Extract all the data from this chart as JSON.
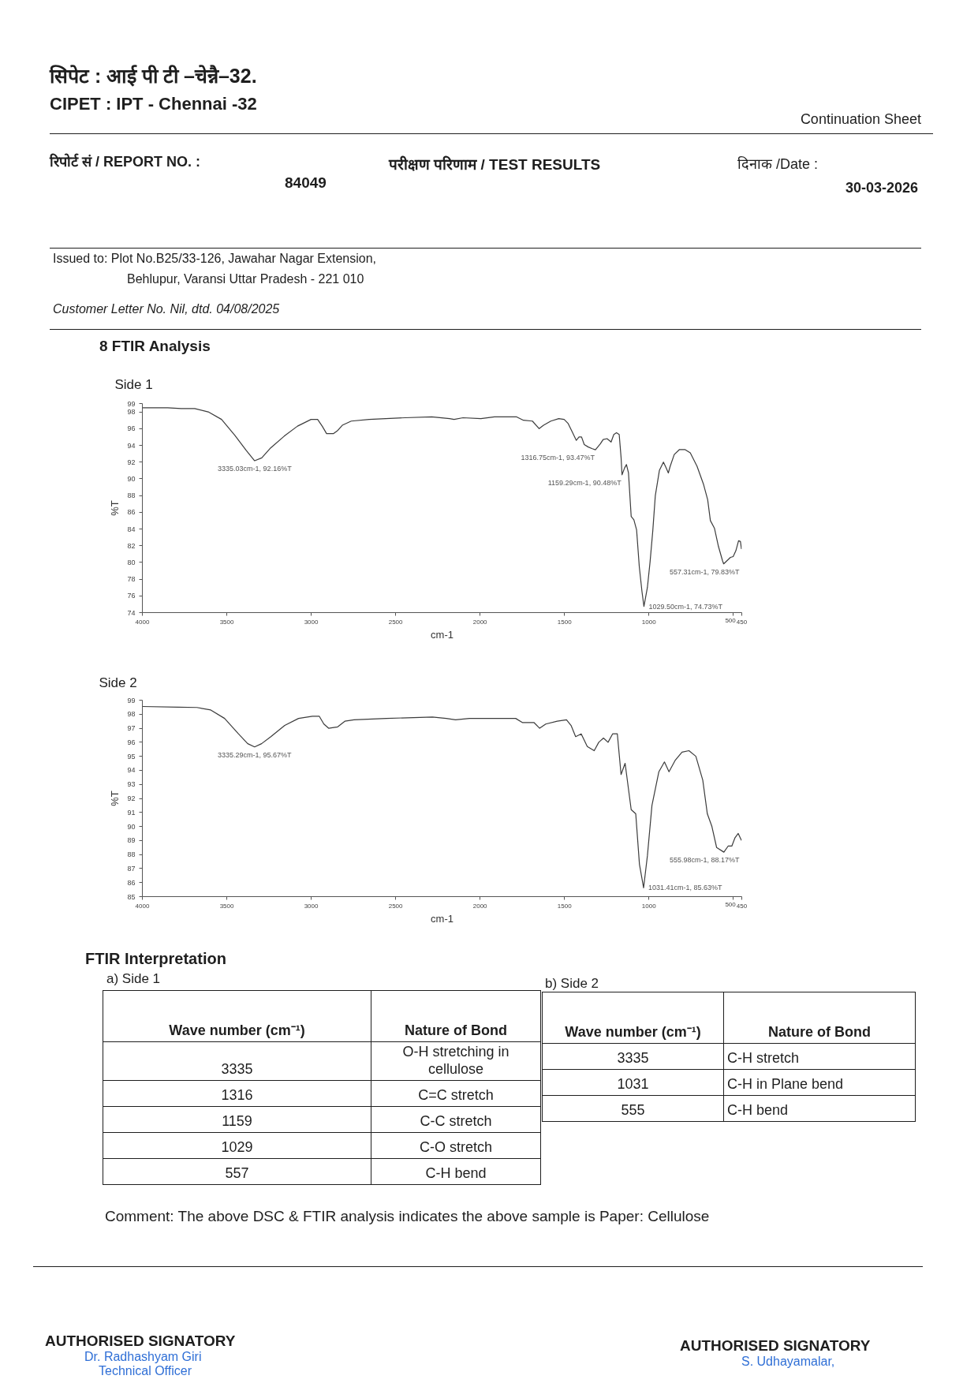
{
  "chart_data": [
    {
      "type": "other",
      "annotations": [
        "सिपेट : आई पी टी –चेन्नै–32.",
        "CIPET : IPT - Chennai -32",
        "Continuation Sheet",
        "रिपोर्ट सं / REPORT NO. :",
        "84049",
        "परीक्षण परिणाम / TEST RESULTS",
        "दिनाक /Date :",
        "30-03-2026",
        "Issued to: Plot No.B25/33-126, Jawahar Nagar Extension,",
        "Behlupur, Varansi Uttar Pradesh - 221 010",
        "Customer Letter No. Nil, dtd. 04/08/2025",
        "8 FTIR Analysis"
      ]
    },
    {
      "type": "line",
      "title": "Side 1",
      "xlabel": "cm-1",
      "ylabel": "%T",
      "color": "#3c3c3c",
      "x": [
        4000,
        3850,
        3770,
        3690,
        3610,
        3531,
        3452,
        3385,
        3335.03,
        3293,
        3240,
        3160,
        3081,
        3001,
        2962,
        2935,
        2909,
        2869,
        2842,
        2816,
        2763,
        2657,
        2445,
        2286,
        2180,
        2154,
        2101,
        1995,
        1915,
        1783,
        1743,
        1690,
        1650,
        1624,
        1581,
        1534,
        1502,
        1478,
        1454,
        1430,
        1414,
        1399,
        1383,
        1359,
        1335,
        1316.75,
        1287,
        1271,
        1248,
        1224,
        1208,
        1192,
        1176,
        1165,
        1159.29,
        1144,
        1133,
        1121,
        1105,
        1089,
        1073,
        1057,
        1041,
        1029.5,
        1009,
        993,
        977,
        962,
        938,
        914,
        898,
        885,
        874,
        850,
        819,
        787,
        755,
        715,
        676,
        652,
        636,
        612,
        588,
        564,
        557.31,
        533,
        517,
        501,
        485,
        469,
        458,
        452
      ],
      "values": [
        98.5,
        98.5,
        98.4,
        98.4,
        98.0,
        97.1,
        95.2,
        93.4,
        92.16,
        92.5,
        93.7,
        95.1,
        96.3,
        97.1,
        97.1,
        96.3,
        95.4,
        95.4,
        95.8,
        96.4,
        96.9,
        97.1,
        97.3,
        97.4,
        97.2,
        97.1,
        97.3,
        97.2,
        97.4,
        97.4,
        97.0,
        96.9,
        96.0,
        96.4,
        96.9,
        97.2,
        97.1,
        96.6,
        95.6,
        94.6,
        95.0,
        95.0,
        94.1,
        93.8,
        93.6,
        93.47,
        94.2,
        94.7,
        94.8,
        94.4,
        95.3,
        95.5,
        95.3,
        92.6,
        90.48,
        91.3,
        91.7,
        90.7,
        85.5,
        85.1,
        83.9,
        79.5,
        76.5,
        74.73,
        77.0,
        80.1,
        83.8,
        88.0,
        91.0,
        92.0,
        91.3,
        90.7,
        91.5,
        92.9,
        93.5,
        93.5,
        93.1,
        91.5,
        89.3,
        87.5,
        85.0,
        84.1,
        81.9,
        80.2,
        79.83,
        80.3,
        80.6,
        80.7,
        81.4,
        82.6,
        82.5,
        81.6
      ],
      "xlim": [
        4000,
        450
      ],
      "xticks": [
        4000,
        3500,
        3000,
        2500,
        2000,
        1500,
        1000,
        500,
        450
      ],
      "ylim": [
        74,
        99
      ],
      "yticks": [
        74,
        76,
        78,
        80,
        82,
        84,
        86,
        88,
        90,
        92,
        94,
        96,
        98,
        99
      ],
      "annotations": [
        {
          "text": "3335.03cm-1, 92.16%T",
          "x": 3335.03,
          "y": 92.16
        },
        {
          "text": "1316.75cm-1, 93.47%T",
          "x": 1316.75,
          "y": 93.47
        },
        {
          "text": "1159.29cm-1, 90.48%T",
          "x": 1159.29,
          "y": 90.48
        },
        {
          "text": "1029.50cm-1, 74.73%T",
          "x": 1029.5,
          "y": 74.73
        },
        {
          "text": "557.31cm-1, 79.83%T",
          "x": 557.31,
          "y": 79.83
        }
      ]
    },
    {
      "type": "line",
      "title": "Side 2",
      "xlabel": "cm-1",
      "ylabel": "%T",
      "color": "#3c3c3c",
      "x": [
        4000,
        3786,
        3677,
        3595,
        3513,
        3431,
        3376,
        3335.29,
        3294,
        3239,
        3157,
        3075,
        2993,
        2952,
        2925,
        2897,
        2843,
        2801,
        2747,
        2555,
        2282,
        2200,
        2145,
        2063,
        1981,
        1789,
        1748,
        1680,
        1647,
        1611,
        1543,
        1488,
        1461,
        1434,
        1401,
        1365,
        1324,
        1297,
        1269,
        1242,
        1215,
        1187,
        1165,
        1141,
        1105,
        1078,
        1056,
        1031.41,
        1009,
        982,
        941,
        908,
        881,
        845,
        804,
        763,
        722,
        681,
        654,
        627,
        599,
        555.98,
        531,
        509,
        490,
        471,
        452
      ],
      "values": [
        98.55,
        98.5,
        98.48,
        98.3,
        97.7,
        96.6,
        95.9,
        95.67,
        95.9,
        96.4,
        97.2,
        97.7,
        97.85,
        97.85,
        97.3,
        97.0,
        97.1,
        97.5,
        97.6,
        97.7,
        97.8,
        97.7,
        97.6,
        97.7,
        97.7,
        97.7,
        97.4,
        97.4,
        97.0,
        97.3,
        97.5,
        97.6,
        97.2,
        96.4,
        96.6,
        95.7,
        95.4,
        96.0,
        96.3,
        96.0,
        96.6,
        96.6,
        93.7,
        94.5,
        91.2,
        90.9,
        87.3,
        85.63,
        87.9,
        91.5,
        93.9,
        94.6,
        93.9,
        94.7,
        95.3,
        95.4,
        95.0,
        93.3,
        90.9,
        90.0,
        88.5,
        88.17,
        88.6,
        88.6,
        89.2,
        89.5,
        89.0
      ],
      "xlim": [
        4000,
        450
      ],
      "xticks": [
        4000,
        3500,
        3000,
        2500,
        2000,
        1500,
        1000,
        500,
        450
      ],
      "ylim": [
        85,
        99
      ],
      "yticks": [
        85,
        86,
        87,
        88,
        89,
        90,
        91,
        92,
        93,
        94,
        95,
        96,
        97,
        98,
        99
      ],
      "annotations": [
        {
          "text": "3335.29cm-1, 95.67%T",
          "x": 3335.29,
          "y": 95.67
        },
        {
          "text": "1031.41cm-1, 85.63%T",
          "x": 1031.41,
          "y": 85.63
        },
        {
          "text": "555.98cm-1, 88.17%T",
          "x": 555.98,
          "y": 88.17
        }
      ]
    },
    {
      "type": "other",
      "title": "FTIR Interpretation",
      "subtitle": "a) Side 1",
      "annotations": [
        "Wave number (cm⁻¹)",
        "Nature of Bond",
        "3335",
        "O-H stretching in cellulose",
        "1316",
        "C=C stretch",
        "1159",
        "C-C stretch",
        "1029",
        "C-O stretch",
        "557",
        "C-H bend"
      ]
    },
    {
      "type": "other",
      "subtitle": "b) Side 2",
      "annotations": [
        "Wave number (cm⁻¹)",
        "Nature of Bond",
        "3335",
        "C-H stretch",
        "1031",
        "C-H in Plane bend",
        "555",
        "C-H bend"
      ]
    },
    {
      "type": "other",
      "annotations": [
        "Comment: The above DSC & FTIR analysis indicates the above sample is Paper: Cellulose",
        "AUTHORISED SIGNATORY",
        "Dr. Radhashyam Giri",
        "Technical Officer",
        "AUTHORISED SIGNATORY",
        "S. Udhayamalar,"
      ]
    }
  ]
}
